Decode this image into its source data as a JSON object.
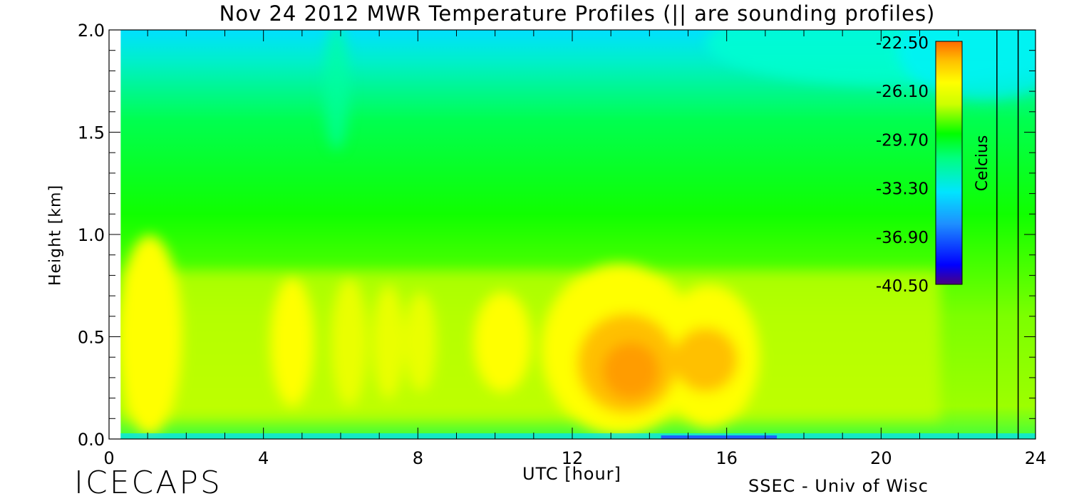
{
  "header": {
    "title": "Nov 24 2012 MWR Temperature Profiles (|| are sounding profiles)"
  },
  "footer": {
    "left_logo": "ICECAPS",
    "right_credit": "SSEC - Univ of Wisc"
  },
  "colors": {
    "scale": [
      "#4b0082",
      "#0000ff",
      "#1e90ff",
      "#00e5ff",
      "#00ff7f",
      "#00ff00",
      "#7cff00",
      "#ccff00",
      "#ffff00",
      "#ffc000",
      "#ff8c00",
      "#ff6a00"
    ]
  },
  "chart_data": {
    "type": "heatmap",
    "title": "Nov 24 2012 MWR Temperature Profiles (|| are sounding profiles)",
    "xlabel": "UTC [hour]",
    "ylabel": "Height [km]",
    "xlim": [
      0,
      24
    ],
    "ylim": [
      0,
      2.0
    ],
    "x_ticks": [
      0,
      4,
      8,
      12,
      16,
      20,
      24
    ],
    "x_tick_labels": [
      "0",
      "4",
      "8",
      "12",
      "16",
      "20",
      "24"
    ],
    "y_ticks": [
      0.0,
      0.5,
      1.0,
      1.5,
      2.0
    ],
    "y_tick_labels": [
      "0.0",
      "0.5",
      "1.0",
      "1.5",
      "2.0"
    ],
    "data_start_hour": 0.3,
    "sounding_profiles_hours": [
      23.0,
      23.55
    ],
    "colorbar": {
      "label": "Celcius",
      "min": -40.5,
      "max": -22.5,
      "tick_values": [
        -22.5,
        -26.1,
        -29.7,
        -33.3,
        -36.9,
        -40.5
      ],
      "tick_labels": [
        "-22.50",
        "-26.10",
        "-29.70",
        "-33.30",
        "-36.90",
        "-40.50"
      ]
    },
    "grid": false,
    "legend_position": "top-right"
  }
}
